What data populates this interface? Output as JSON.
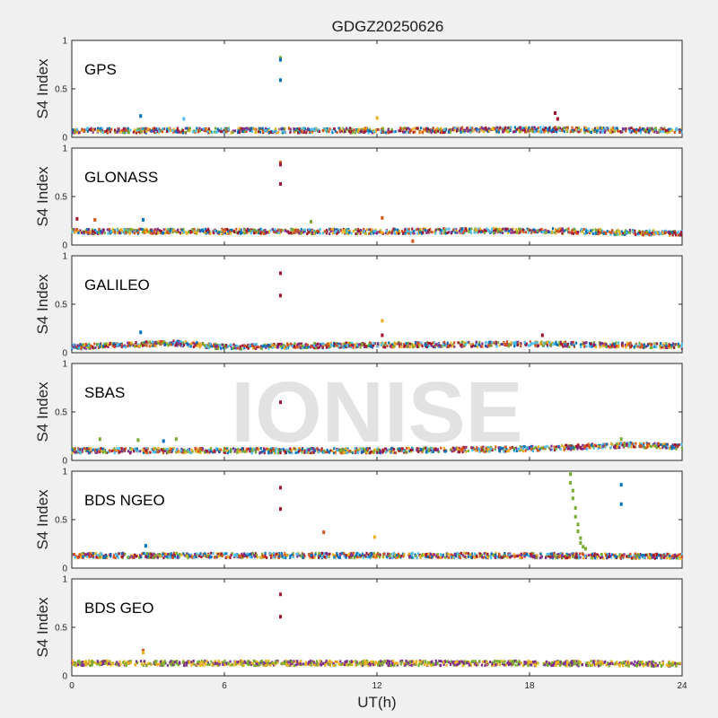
{
  "chart_data": {
    "type": "scatter",
    "title": "GDGZ20250626",
    "watermark": "IONISE",
    "xlabel": "UT(h)",
    "xlim": [
      0,
      24
    ],
    "xticks": [
      0,
      6,
      12,
      18,
      24
    ],
    "ylabel": "S4 Index",
    "ylim": [
      0,
      1
    ],
    "yticks": [
      0,
      0.5,
      1
    ],
    "ytick_labels": [
      "0",
      "0.5",
      "1"
    ],
    "series_colors": [
      "#0072BD",
      "#D95319",
      "#EDB120",
      "#7E2F8E",
      "#77AC30",
      "#4DBEEE",
      "#A2142F"
    ],
    "panels": [
      {
        "label": "GPS",
        "colors": [
          "#0072BD",
          "#D95319",
          "#EDB120",
          "#7E2F8E",
          "#77AC30",
          "#4DBEEE",
          "#A2142F"
        ],
        "baseline": [
          {
            "t": 0,
            "v": 0.07
          },
          {
            "t": 6,
            "v": 0.07
          },
          {
            "t": 12,
            "v": 0.07
          },
          {
            "t": 18,
            "v": 0.08
          },
          {
            "t": 24,
            "v": 0.07
          }
        ],
        "spikes": [
          {
            "t": 8.2,
            "v": 0.82,
            "c": "#77AC30"
          },
          {
            "t": 8.2,
            "v": 0.8,
            "c": "#0072BD"
          },
          {
            "t": 8.2,
            "v": 0.59,
            "c": "#0072BD"
          },
          {
            "t": 2.7,
            "v": 0.22,
            "c": "#0072BD"
          },
          {
            "t": 4.4,
            "v": 0.19,
            "c": "#4DBEEE"
          },
          {
            "t": 12.0,
            "v": 0.2,
            "c": "#EDB120"
          },
          {
            "t": 19.0,
            "v": 0.25,
            "c": "#A2142F"
          },
          {
            "t": 19.1,
            "v": 0.19,
            "c": "#A2142F"
          }
        ]
      },
      {
        "label": "GLONASS",
        "colors": [
          "#0072BD",
          "#D95319",
          "#EDB120",
          "#7E2F8E",
          "#77AC30",
          "#4DBEEE",
          "#A2142F"
        ],
        "baseline": [
          {
            "t": 0,
            "v": 0.14
          },
          {
            "t": 6,
            "v": 0.14
          },
          {
            "t": 12,
            "v": 0.14
          },
          {
            "t": 18,
            "v": 0.15
          },
          {
            "t": 24,
            "v": 0.12
          }
        ],
        "spikes": [
          {
            "t": 8.2,
            "v": 0.85,
            "c": "#D95319"
          },
          {
            "t": 8.2,
            "v": 0.83,
            "c": "#A2142F"
          },
          {
            "t": 8.2,
            "v": 0.63,
            "c": "#A2142F"
          },
          {
            "t": 0.2,
            "v": 0.27,
            "c": "#A2142F"
          },
          {
            "t": 0.9,
            "v": 0.26,
            "c": "#D95319"
          },
          {
            "t": 2.8,
            "v": 0.26,
            "c": "#0072BD"
          },
          {
            "t": 9.4,
            "v": 0.24,
            "c": "#77AC30"
          },
          {
            "t": 12.2,
            "v": 0.28,
            "c": "#D95319"
          },
          {
            "t": 13.4,
            "v": 0.04,
            "c": "#D95319"
          }
        ]
      },
      {
        "label": "GALILEO",
        "colors": [
          "#0072BD",
          "#D95319",
          "#EDB120",
          "#7E2F8E",
          "#77AC30",
          "#4DBEEE",
          "#A2142F"
        ],
        "baseline": [
          {
            "t": 0,
            "v": 0.06
          },
          {
            "t": 4,
            "v": 0.1
          },
          {
            "t": 6,
            "v": 0.06
          },
          {
            "t": 12,
            "v": 0.08
          },
          {
            "t": 18,
            "v": 0.09
          },
          {
            "t": 24,
            "v": 0.07
          }
        ],
        "spikes": [
          {
            "t": 8.2,
            "v": 0.82,
            "c": "#A2142F"
          },
          {
            "t": 8.2,
            "v": 0.59,
            "c": "#A2142F"
          },
          {
            "t": 2.7,
            "v": 0.21,
            "c": "#0072BD"
          },
          {
            "t": 12.2,
            "v": 0.33,
            "c": "#EDB120"
          },
          {
            "t": 12.2,
            "v": 0.18,
            "c": "#A2142F"
          },
          {
            "t": 18.5,
            "v": 0.18,
            "c": "#A2142F"
          }
        ]
      },
      {
        "label": "SBAS",
        "colors": [
          "#0072BD",
          "#D95319",
          "#EDB120",
          "#7E2F8E",
          "#77AC30",
          "#4DBEEE",
          "#A2142F"
        ],
        "baseline": [
          {
            "t": 0,
            "v": 0.1
          },
          {
            "t": 6,
            "v": 0.1
          },
          {
            "t": 12,
            "v": 0.1
          },
          {
            "t": 18,
            "v": 0.12
          },
          {
            "t": 22,
            "v": 0.16
          },
          {
            "t": 24,
            "v": 0.14
          }
        ],
        "spikes": [
          {
            "t": 8.2,
            "v": 0.6,
            "c": "#A2142F"
          },
          {
            "t": 1.1,
            "v": 0.22,
            "c": "#77AC30"
          },
          {
            "t": 2.6,
            "v": 0.21,
            "c": "#77AC30"
          },
          {
            "t": 3.6,
            "v": 0.2,
            "c": "#0072BD"
          },
          {
            "t": 4.1,
            "v": 0.22,
            "c": "#77AC30"
          },
          {
            "t": 21.6,
            "v": 0.22,
            "c": "#77AC30"
          }
        ]
      },
      {
        "label": "BDS NGEO",
        "colors": [
          "#0072BD",
          "#D95319",
          "#EDB120",
          "#7E2F8E",
          "#77AC30",
          "#4DBEEE",
          "#A2142F"
        ],
        "baseline": [
          {
            "t": 0,
            "v": 0.13
          },
          {
            "t": 6,
            "v": 0.13
          },
          {
            "t": 12,
            "v": 0.13
          },
          {
            "t": 18,
            "v": 0.13
          },
          {
            "t": 24,
            "v": 0.12
          }
        ],
        "spikes": [
          {
            "t": 8.2,
            "v": 0.83,
            "c": "#A2142F"
          },
          {
            "t": 8.2,
            "v": 0.61,
            "c": "#A2142F"
          },
          {
            "t": 2.9,
            "v": 0.23,
            "c": "#0072BD"
          },
          {
            "t": 9.9,
            "v": 0.37,
            "c": "#D95319"
          },
          {
            "t": 11.9,
            "v": 0.32,
            "c": "#EDB120"
          },
          {
            "t": 21.6,
            "v": 0.86,
            "c": "#0072BD"
          },
          {
            "t": 21.6,
            "v": 0.66,
            "c": "#0072BD"
          },
          {
            "t": 19.6,
            "v": 0.97,
            "c": "#77AC30"
          },
          {
            "t": 19.6,
            "v": 0.88,
            "c": "#77AC30"
          },
          {
            "t": 19.7,
            "v": 0.8,
            "c": "#77AC30"
          },
          {
            "t": 19.7,
            "v": 0.72,
            "c": "#77AC30"
          },
          {
            "t": 19.8,
            "v": 0.62,
            "c": "#77AC30"
          },
          {
            "t": 19.8,
            "v": 0.53,
            "c": "#77AC30"
          },
          {
            "t": 19.9,
            "v": 0.45,
            "c": "#77AC30"
          },
          {
            "t": 19.9,
            "v": 0.38,
            "c": "#77AC30"
          },
          {
            "t": 20.0,
            "v": 0.31,
            "c": "#77AC30"
          },
          {
            "t": 20.0,
            "v": 0.26,
            "c": "#77AC30"
          },
          {
            "t": 20.1,
            "v": 0.22,
            "c": "#77AC30"
          },
          {
            "t": 20.2,
            "v": 0.2,
            "c": "#77AC30"
          }
        ]
      },
      {
        "label": "BDS GEO",
        "colors": [
          "#7E2F8E",
          "#EDB120",
          "#77AC30"
        ],
        "baseline": [
          {
            "t": 0,
            "v": 0.13
          },
          {
            "t": 6,
            "v": 0.13
          },
          {
            "t": 12,
            "v": 0.13
          },
          {
            "t": 18,
            "v": 0.13
          },
          {
            "t": 24,
            "v": 0.12
          }
        ],
        "spikes": [
          {
            "t": 8.2,
            "v": 0.84,
            "c": "#A2142F"
          },
          {
            "t": 8.2,
            "v": 0.61,
            "c": "#A2142F"
          },
          {
            "t": 2.8,
            "v": 0.26,
            "c": "#D95319"
          },
          {
            "t": 2.8,
            "v": 0.24,
            "c": "#EDB120"
          }
        ]
      }
    ]
  }
}
